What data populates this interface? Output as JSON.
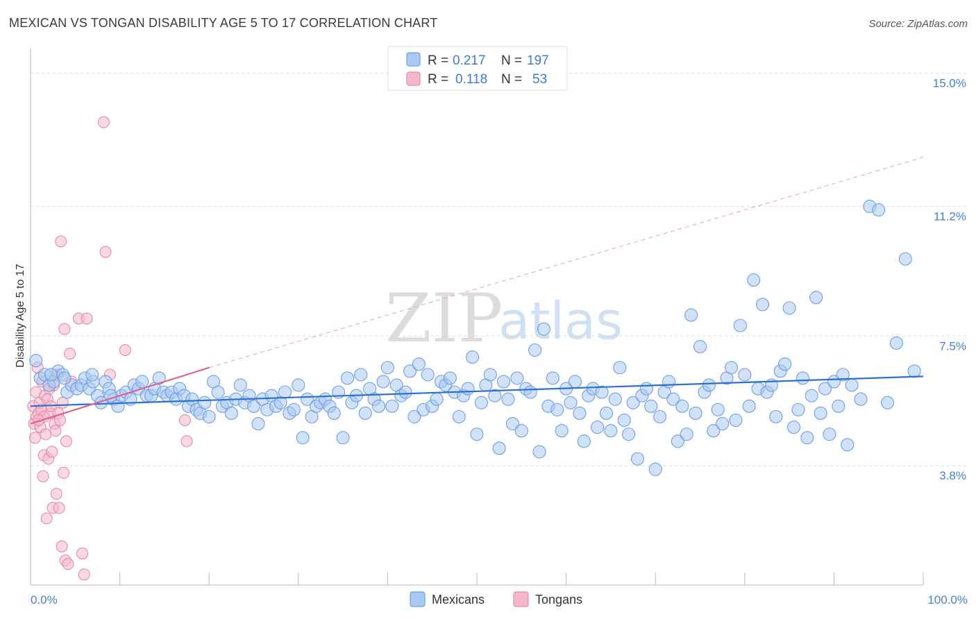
{
  "chart_data": {
    "type": "scatter",
    "title": "MEXICAN VS TONGAN DISABILITY AGE 5 TO 17 CORRELATION CHART",
    "source": "Source: ZipAtlas.com",
    "ylabel": "Disability Age 5 to 17",
    "xlabel": "",
    "xlim": [
      0,
      100
    ],
    "ylim": [
      0.4,
      15.7
    ],
    "x_tick_labels": [
      "0.0%",
      "100.0%"
    ],
    "y_ticks": [
      {
        "value": 15.0,
        "label": "15.0%"
      },
      {
        "value": 11.2,
        "label": "11.2%"
      },
      {
        "value": 7.5,
        "label": "7.5%"
      },
      {
        "value": 3.8,
        "label": "3.8%"
      }
    ],
    "grid": "horizontal dashed",
    "legend": {
      "placement": "top-center",
      "rows": [
        {
          "r_label": "R =",
          "r_value": "0.217",
          "n_label": "N =",
          "n_value": "197",
          "color": "#a9c8f2"
        },
        {
          "r_label": "R =",
          "r_value": "0.118",
          "n_label": "N =",
          "n_value": "53",
          "color": "#f5b8ca"
        }
      ]
    },
    "watermark": {
      "zip": "ZIP",
      "atlas": "atlas"
    },
    "series": [
      {
        "name": "Mexicans",
        "color": "#a9c8f2",
        "stroke": "#6e9fe0",
        "trend": {
          "x": [
            0,
            100
          ],
          "y": [
            5.5,
            6.35
          ],
          "color": "#2a6fd6"
        },
        "points": [
          [
            0.6,
            6.8
          ],
          [
            1.1,
            6.3
          ],
          [
            1.6,
            6.4
          ],
          [
            2.1,
            6.1
          ],
          [
            2.6,
            6.2
          ],
          [
            3.1,
            6.5
          ],
          [
            3.6,
            6.4
          ],
          [
            4.1,
            5.9
          ],
          [
            4.6,
            6.1
          ],
          [
            5.2,
            6.0
          ],
          [
            5.7,
            6.1
          ],
          [
            6.1,
            6.3
          ],
          [
            6.6,
            6.0
          ],
          [
            7.0,
            6.2
          ],
          [
            7.5,
            5.8
          ],
          [
            7.9,
            5.6
          ],
          [
            8.4,
            6.2
          ],
          [
            8.8,
            6.0
          ],
          [
            9.3,
            5.7
          ],
          [
            9.8,
            5.5
          ],
          [
            10.2,
            5.8
          ],
          [
            10.7,
            5.9
          ],
          [
            11.2,
            5.7
          ],
          [
            11.6,
            6.1
          ],
          [
            12.1,
            6.0
          ],
          [
            12.5,
            6.2
          ],
          [
            13.0,
            5.8
          ],
          [
            13.5,
            5.8
          ],
          [
            13.9,
            6.0
          ],
          [
            14.4,
            6.3
          ],
          [
            14.9,
            5.9
          ],
          [
            15.3,
            5.8
          ],
          [
            15.8,
            5.9
          ],
          [
            16.3,
            5.7
          ],
          [
            16.7,
            6.0
          ],
          [
            17.2,
            5.8
          ],
          [
            17.7,
            5.5
          ],
          [
            18.1,
            5.7
          ],
          [
            18.6,
            5.4
          ],
          [
            19.0,
            5.3
          ],
          [
            19.5,
            5.6
          ],
          [
            20.0,
            5.2
          ],
          [
            20.5,
            6.2
          ],
          [
            21.0,
            5.9
          ],
          [
            21.5,
            5.5
          ],
          [
            22.0,
            5.6
          ],
          [
            22.5,
            5.3
          ],
          [
            23.0,
            5.7
          ],
          [
            23.5,
            6.1
          ],
          [
            24.0,
            5.6
          ],
          [
            24.5,
            5.8
          ],
          [
            25.0,
            5.5
          ],
          [
            25.5,
            5.0
          ],
          [
            26.0,
            5.7
          ],
          [
            26.5,
            5.4
          ],
          [
            27.0,
            5.8
          ],
          [
            27.5,
            5.5
          ],
          [
            28.0,
            5.6
          ],
          [
            28.5,
            5.9
          ],
          [
            29.0,
            5.3
          ],
          [
            29.5,
            5.4
          ],
          [
            30.0,
            6.1
          ],
          [
            30.5,
            4.6
          ],
          [
            31.0,
            5.7
          ],
          [
            31.5,
            5.2
          ],
          [
            32.0,
            5.5
          ],
          [
            32.5,
            5.6
          ],
          [
            33.0,
            5.7
          ],
          [
            33.5,
            5.5
          ],
          [
            34.0,
            5.3
          ],
          [
            34.5,
            5.9
          ],
          [
            35.0,
            4.6
          ],
          [
            35.5,
            6.3
          ],
          [
            36.0,
            5.6
          ],
          [
            36.5,
            5.8
          ],
          [
            37.0,
            6.4
          ],
          [
            37.5,
            5.3
          ],
          [
            38.0,
            6.0
          ],
          [
            38.5,
            5.7
          ],
          [
            39.0,
            5.5
          ],
          [
            39.5,
            6.2
          ],
          [
            40.0,
            6.6
          ],
          [
            40.5,
            5.5
          ],
          [
            41.0,
            6.1
          ],
          [
            41.5,
            5.8
          ],
          [
            42.0,
            5.9
          ],
          [
            42.5,
            6.5
          ],
          [
            43.0,
            5.2
          ],
          [
            43.5,
            6.7
          ],
          [
            44.0,
            5.4
          ],
          [
            44.5,
            6.4
          ],
          [
            45.0,
            5.5
          ],
          [
            45.5,
            5.7
          ],
          [
            46.0,
            6.2
          ],
          [
            46.5,
            6.1
          ],
          [
            47.0,
            6.3
          ],
          [
            47.5,
            5.9
          ],
          [
            48.0,
            5.2
          ],
          [
            48.5,
            5.8
          ],
          [
            49.0,
            6.0
          ],
          [
            49.5,
            6.9
          ],
          [
            50.0,
            4.7
          ],
          [
            50.5,
            5.6
          ],
          [
            51.0,
            6.1
          ],
          [
            51.5,
            6.4
          ],
          [
            52.0,
            5.8
          ],
          [
            52.5,
            4.3
          ],
          [
            53.0,
            6.2
          ],
          [
            53.5,
            5.7
          ],
          [
            54.0,
            5.0
          ],
          [
            54.5,
            6.3
          ],
          [
            55.0,
            4.8
          ],
          [
            55.5,
            6.0
          ],
          [
            56.0,
            5.9
          ],
          [
            56.5,
            7.1
          ],
          [
            57.0,
            4.2
          ],
          [
            57.5,
            7.7
          ],
          [
            58.0,
            5.5
          ],
          [
            58.5,
            6.3
          ],
          [
            59.0,
            5.4
          ],
          [
            59.5,
            4.8
          ],
          [
            60.0,
            6.0
          ],
          [
            60.5,
            5.6
          ],
          [
            61.0,
            6.2
          ],
          [
            61.5,
            5.3
          ],
          [
            62.0,
            4.5
          ],
          [
            62.5,
            5.8
          ],
          [
            63.0,
            6.0
          ],
          [
            63.5,
            4.9
          ],
          [
            64.0,
            5.9
          ],
          [
            64.5,
            5.3
          ],
          [
            65.0,
            4.8
          ],
          [
            65.5,
            5.7
          ],
          [
            66.0,
            6.6
          ],
          [
            66.5,
            5.1
          ],
          [
            67.0,
            4.7
          ],
          [
            67.5,
            5.6
          ],
          [
            68.0,
            4.0
          ],
          [
            68.5,
            5.8
          ],
          [
            69.0,
            6.0
          ],
          [
            69.5,
            5.5
          ],
          [
            70.0,
            3.7
          ],
          [
            70.5,
            5.2
          ],
          [
            71.0,
            5.9
          ],
          [
            71.5,
            6.2
          ],
          [
            72.0,
            5.7
          ],
          [
            72.5,
            4.5
          ],
          [
            73.0,
            5.5
          ],
          [
            73.5,
            4.7
          ],
          [
            74.0,
            8.1
          ],
          [
            74.5,
            5.3
          ],
          [
            75.0,
            7.2
          ],
          [
            75.5,
            5.9
          ],
          [
            76.0,
            6.1
          ],
          [
            76.5,
            4.8
          ],
          [
            77.0,
            5.4
          ],
          [
            77.5,
            5.0
          ],
          [
            78.0,
            6.3
          ],
          [
            78.5,
            6.6
          ],
          [
            79.0,
            5.1
          ],
          [
            79.5,
            7.8
          ],
          [
            80.0,
            6.4
          ],
          [
            80.5,
            5.5
          ],
          [
            81.0,
            9.1
          ],
          [
            81.5,
            6.0
          ],
          [
            82.0,
            8.4
          ],
          [
            82.5,
            5.9
          ],
          [
            83.0,
            6.1
          ],
          [
            83.5,
            5.2
          ],
          [
            84.0,
            6.5
          ],
          [
            84.5,
            6.7
          ],
          [
            85.0,
            8.3
          ],
          [
            85.5,
            4.9
          ],
          [
            86.0,
            5.4
          ],
          [
            86.5,
            6.3
          ],
          [
            87.0,
            4.6
          ],
          [
            87.5,
            5.8
          ],
          [
            88.0,
            8.6
          ],
          [
            88.5,
            5.3
          ],
          [
            89.0,
            6.0
          ],
          [
            89.5,
            4.7
          ],
          [
            90.0,
            6.2
          ],
          [
            90.5,
            5.5
          ],
          [
            91.0,
            6.4
          ],
          [
            91.5,
            4.4
          ],
          [
            92.0,
            6.1
          ],
          [
            93.0,
            5.7
          ],
          [
            94.0,
            11.2
          ],
          [
            95.0,
            11.1
          ],
          [
            96.0,
            5.6
          ],
          [
            97.0,
            7.3
          ],
          [
            98.0,
            9.7
          ],
          [
            99.0,
            6.5
          ],
          [
            2.3,
            6.4
          ],
          [
            3.8,
            6.3
          ],
          [
            6.9,
            6.4
          ],
          [
            9.0,
            5.8
          ]
        ]
      },
      {
        "name": "Tongans",
        "color": "#f5b8ca",
        "stroke": "#e68aa8",
        "trend": {
          "x": [
            0,
            20
          ],
          "y": [
            5.0,
            6.6
          ],
          "color": "#e0628c"
        },
        "trend_ext": {
          "x": [
            20,
            100
          ],
          "y": [
            6.6,
            12.6
          ]
        },
        "points": [
          [
            0.3,
            5.5
          ],
          [
            0.4,
            5.0
          ],
          [
            0.5,
            4.6
          ],
          [
            0.6,
            5.9
          ],
          [
            0.7,
            5.2
          ],
          [
            0.8,
            6.6
          ],
          [
            0.9,
            5.3
          ],
          [
            1.0,
            5.6
          ],
          [
            1.1,
            4.9
          ],
          [
            1.2,
            5.4
          ],
          [
            1.3,
            6.2
          ],
          [
            1.4,
            3.5
          ],
          [
            1.5,
            4.1
          ],
          [
            1.6,
            5.8
          ],
          [
            1.7,
            4.7
          ],
          [
            1.8,
            2.3
          ],
          [
            1.9,
            5.7
          ],
          [
            2.0,
            4.0
          ],
          [
            2.1,
            6.0
          ],
          [
            2.2,
            5.3
          ],
          [
            2.3,
            5.5
          ],
          [
            2.4,
            4.2
          ],
          [
            2.5,
            2.6
          ],
          [
            2.6,
            6.1
          ],
          [
            2.7,
            5.0
          ],
          [
            2.8,
            4.8
          ],
          [
            2.9,
            3.0
          ],
          [
            3.0,
            6.4
          ],
          [
            3.1,
            5.3
          ],
          [
            3.2,
            2.6
          ],
          [
            3.3,
            5.1
          ],
          [
            3.4,
            10.2
          ],
          [
            3.5,
            1.5
          ],
          [
            3.6,
            5.6
          ],
          [
            3.7,
            3.6
          ],
          [
            3.8,
            7.7
          ],
          [
            3.9,
            1.1
          ],
          [
            4.0,
            4.5
          ],
          [
            4.2,
            1.0
          ],
          [
            4.4,
            7.0
          ],
          [
            4.6,
            6.2
          ],
          [
            5.4,
            8.0
          ],
          [
            5.8,
            1.3
          ],
          [
            6.0,
            0.7
          ],
          [
            6.3,
            8.0
          ],
          [
            8.2,
            13.6
          ],
          [
            8.4,
            9.9
          ],
          [
            8.9,
            6.4
          ],
          [
            10.6,
            7.1
          ],
          [
            17.5,
            4.5
          ],
          [
            17.3,
            5.1
          ],
          [
            1.5,
            5.2
          ],
          [
            0.9,
            5.1
          ]
        ]
      }
    ]
  }
}
